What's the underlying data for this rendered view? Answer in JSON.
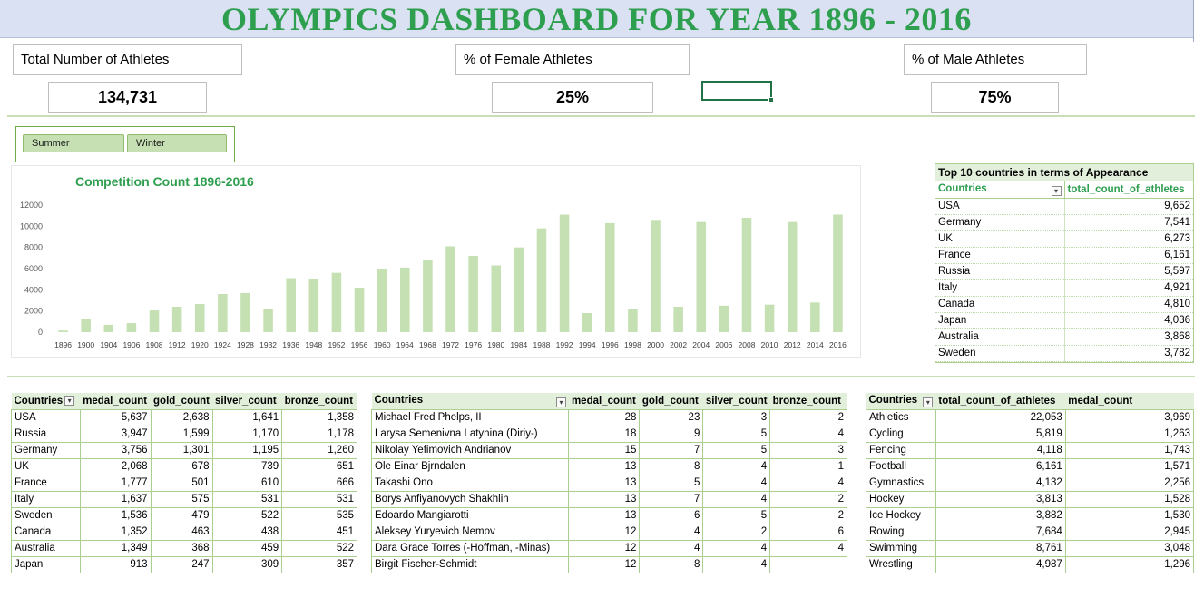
{
  "header": {
    "title": "OLYMPICS DASHBOARD FOR YEAR 1896 - 2016"
  },
  "kpis": [
    {
      "label": "Total Number of Athletes",
      "value": "134,731"
    },
    {
      "label": "% of Female Athletes",
      "value": "25%"
    },
    {
      "label": "% of Male Athletes",
      "value": "75%"
    }
  ],
  "slicer": {
    "items": [
      "Summer",
      "Winter"
    ]
  },
  "chart_data": {
    "type": "bar",
    "title": "Competition Count 1896-2016",
    "categories": [
      "1896",
      "1900",
      "1904",
      "1906",
      "1908",
      "1912",
      "1920",
      "1924",
      "1928",
      "1932",
      "1936",
      "1948",
      "1952",
      "1956",
      "1960",
      "1964",
      "1968",
      "1972",
      "1976",
      "1980",
      "1984",
      "1988",
      "1992",
      "1994",
      "1996",
      "1998",
      "2000",
      "2002",
      "2004",
      "2006",
      "2008",
      "2010",
      "2012",
      "2014",
      "2016"
    ],
    "values": [
      150,
      1250,
      700,
      850,
      2050,
      2400,
      2650,
      3600,
      3700,
      2200,
      5100,
      5000,
      5600,
      4200,
      6000,
      6100,
      6800,
      8100,
      7200,
      6300,
      8000,
      9800,
      11100,
      1800,
      10300,
      2200,
      10600,
      2400,
      10400,
      2500,
      10800,
      2600,
      10400,
      2800,
      11100
    ],
    "ylim": [
      0,
      12000
    ],
    "yticks": [
      0,
      2000,
      4000,
      6000,
      8000,
      10000,
      12000
    ],
    "bar_color": "#c5e0b3"
  },
  "top10": {
    "title": "Top 10 countries in terms of Appearance",
    "headers": [
      "Countries",
      "total_count_of_athletes"
    ],
    "rows": [
      [
        "USA",
        "9,652"
      ],
      [
        "Germany",
        "7,541"
      ],
      [
        "UK",
        "6,273"
      ],
      [
        "France",
        "6,161"
      ],
      [
        "Russia",
        "5,597"
      ],
      [
        "Italy",
        "4,921"
      ],
      [
        "Canada",
        "4,810"
      ],
      [
        "Japan",
        "4,036"
      ],
      [
        "Australia",
        "3,868"
      ],
      [
        "Sweden",
        "3,782"
      ]
    ]
  },
  "country_medals": {
    "headers": [
      "Countries",
      "medal_count",
      "gold_count",
      "silver_count",
      "bronze_count"
    ],
    "rows": [
      [
        "USA",
        "5,637",
        "2,638",
        "1,641",
        "1,358"
      ],
      [
        "Russia",
        "3,947",
        "1,599",
        "1,170",
        "1,178"
      ],
      [
        "Germany",
        "3,756",
        "1,301",
        "1,195",
        "1,260"
      ],
      [
        "UK",
        "2,068",
        "678",
        "739",
        "651"
      ],
      [
        "France",
        "1,777",
        "501",
        "610",
        "666"
      ],
      [
        "Italy",
        "1,637",
        "575",
        "531",
        "531"
      ],
      [
        "Sweden",
        "1,536",
        "479",
        "522",
        "535"
      ],
      [
        "Canada",
        "1,352",
        "463",
        "438",
        "451"
      ],
      [
        "Australia",
        "1,349",
        "368",
        "459",
        "522"
      ],
      [
        "Japan",
        "913",
        "247",
        "309",
        "357"
      ]
    ]
  },
  "athlete_medals": {
    "headers": [
      "Countries",
      "medal_count",
      "gold_count",
      "silver_count",
      "bronze_count"
    ],
    "rows": [
      [
        "Michael Fred Phelps, II",
        "28",
        "23",
        "3",
        "2"
      ],
      [
        "Larysa Semenivna Latynina (Diriy-)",
        "18",
        "9",
        "5",
        "4"
      ],
      [
        "Nikolay Yefimovich Andrianov",
        "15",
        "7",
        "5",
        "3"
      ],
      [
        "Ole Einar Bjrndalen",
        "13",
        "8",
        "4",
        "1"
      ],
      [
        "Takashi Ono",
        "13",
        "5",
        "4",
        "4"
      ],
      [
        "Borys Anfiyanovych Shakhlin",
        "13",
        "7",
        "4",
        "2"
      ],
      [
        "Edoardo Mangiarotti",
        "13",
        "6",
        "5",
        "2"
      ],
      [
        "Aleksey Yuryevich Nemov",
        "12",
        "4",
        "2",
        "6"
      ],
      [
        "Dara Grace Torres (-Hoffman, -Minas)",
        "12",
        "4",
        "4",
        "4"
      ],
      [
        "Birgit Fischer-Schmidt",
        "12",
        "8",
        "4",
        ""
      ]
    ]
  },
  "sport_medals": {
    "headers": [
      "Countries",
      "total_count_of_athletes",
      "medal_count"
    ],
    "rows": [
      [
        "Athletics",
        "22,053",
        "3,969"
      ],
      [
        "Cycling",
        "5,819",
        "1,263"
      ],
      [
        "Fencing",
        "4,118",
        "1,743"
      ],
      [
        "Football",
        "6,161",
        "1,571"
      ],
      [
        "Gymnastics",
        "4,132",
        "2,256"
      ],
      [
        "Hockey",
        "3,813",
        "1,528"
      ],
      [
        "Ice Hockey",
        "3,882",
        "1,530"
      ],
      [
        "Rowing",
        "7,684",
        "2,945"
      ],
      [
        "Swimming",
        "8,761",
        "3,048"
      ],
      [
        "Wrestling",
        "4,987",
        "1,296"
      ]
    ]
  }
}
